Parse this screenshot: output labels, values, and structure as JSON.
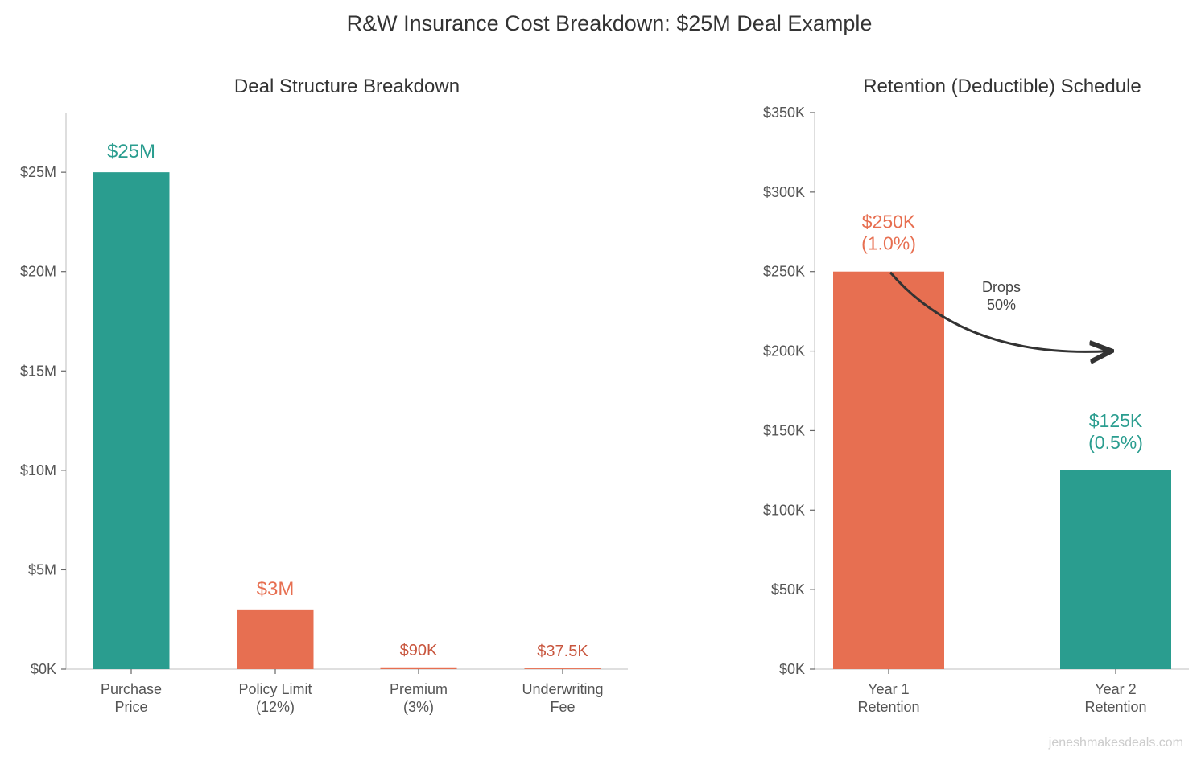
{
  "suptitle": "R&W Insurance Cost Breakdown: $25M Deal Example",
  "watermark": "jeneshmakesdeals.com",
  "colors": {
    "teal": "#2a9d8f",
    "orange": "#e76f51",
    "small_label": "#c8553d"
  },
  "chart_data": [
    {
      "type": "bar",
      "title": "Deal Structure Breakdown",
      "categories": [
        [
          "Purchase",
          "Price"
        ],
        [
          "Policy Limit",
          "(12%)"
        ],
        [
          "Premium",
          "(3%)"
        ],
        [
          "Underwriting",
          "Fee"
        ]
      ],
      "values": [
        25,
        3,
        0.09,
        0.0375
      ],
      "unit": "$M",
      "data_labels": [
        "$25M",
        "$3M",
        "$90K",
        "$37.5K"
      ],
      "bar_colors": [
        "teal",
        "orange",
        "orange",
        "orange"
      ],
      "label_colors": [
        "teal",
        "orange",
        "small_label",
        "small_label"
      ],
      "ylim": [
        0,
        28
      ],
      "yticks": [
        0,
        5,
        10,
        15,
        20,
        25
      ],
      "ytick_labels": [
        "$0K",
        "$5M",
        "$10M",
        "$15M",
        "$20M",
        "$25M"
      ],
      "grid": false
    },
    {
      "type": "bar",
      "title": "Retention (Deductible) Schedule",
      "categories": [
        [
          "Year 1",
          "Retention"
        ],
        [
          "Year 2",
          "Retention"
        ]
      ],
      "values": [
        250,
        125
      ],
      "unit": "$K",
      "data_labels": [
        [
          "$250K",
          "(1.0%)"
        ],
        [
          "$125K",
          "(0.5%)"
        ]
      ],
      "bar_colors": [
        "orange",
        "teal"
      ],
      "label_colors": [
        "orange",
        "teal"
      ],
      "ylim": [
        0,
        350
      ],
      "yticks": [
        0,
        50,
        100,
        150,
        200,
        250,
        300,
        350
      ],
      "ytick_labels": [
        "$0K",
        "$50K",
        "$100K",
        "$150K",
        "$200K",
        "$250K",
        "$300K",
        "$350K"
      ],
      "annotation": [
        "Drops",
        "50%"
      ],
      "grid": false
    }
  ]
}
